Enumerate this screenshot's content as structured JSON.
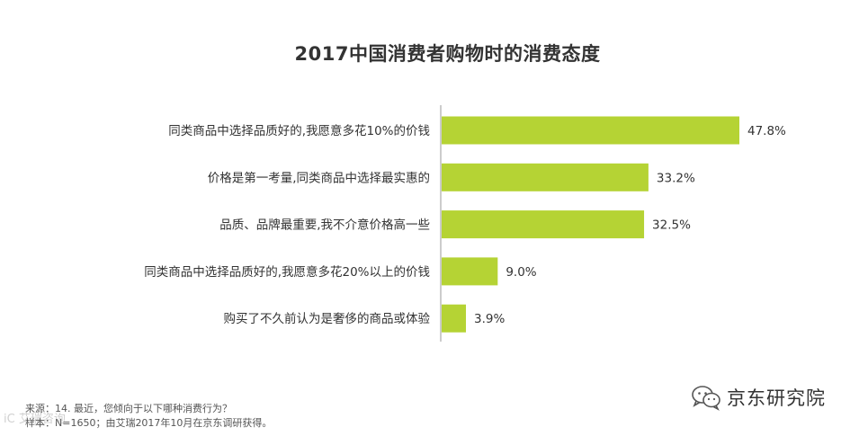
{
  "chart_data": {
    "type": "bar",
    "orientation": "horizontal",
    "title": "2017中国消费者购物时的消费态度",
    "categories": [
      "同类商品中选择品质好的,我愿意多花10%的价钱",
      "价格是第一考量,同类商品中选择最实惠的",
      "品质、品牌最重要,我不介意价格高一些",
      "同类商品中选择品质好的,我愿意多花20%以上的价钱",
      "购买了不久前认为是奢侈的商品或体验"
    ],
    "values": [
      47.8,
      33.2,
      32.5,
      9.0,
      3.9
    ],
    "value_labels": [
      "47.8%",
      "33.2%",
      "32.5%",
      "9.0%",
      "3.9%"
    ],
    "unit": "%",
    "bar_color": "#b5d334",
    "grid": false,
    "legend": "none"
  },
  "footnotes": {
    "line1": "来源：14. 最近，您倾向于以下哪种消费行为？",
    "line2": "样本：N=1650；由艾瑞2017年10月在京东调研获得。"
  },
  "watermark": "iC 艾瑞咨询",
  "brand": {
    "icon": "wechat-icon",
    "name": "京东研究院"
  }
}
